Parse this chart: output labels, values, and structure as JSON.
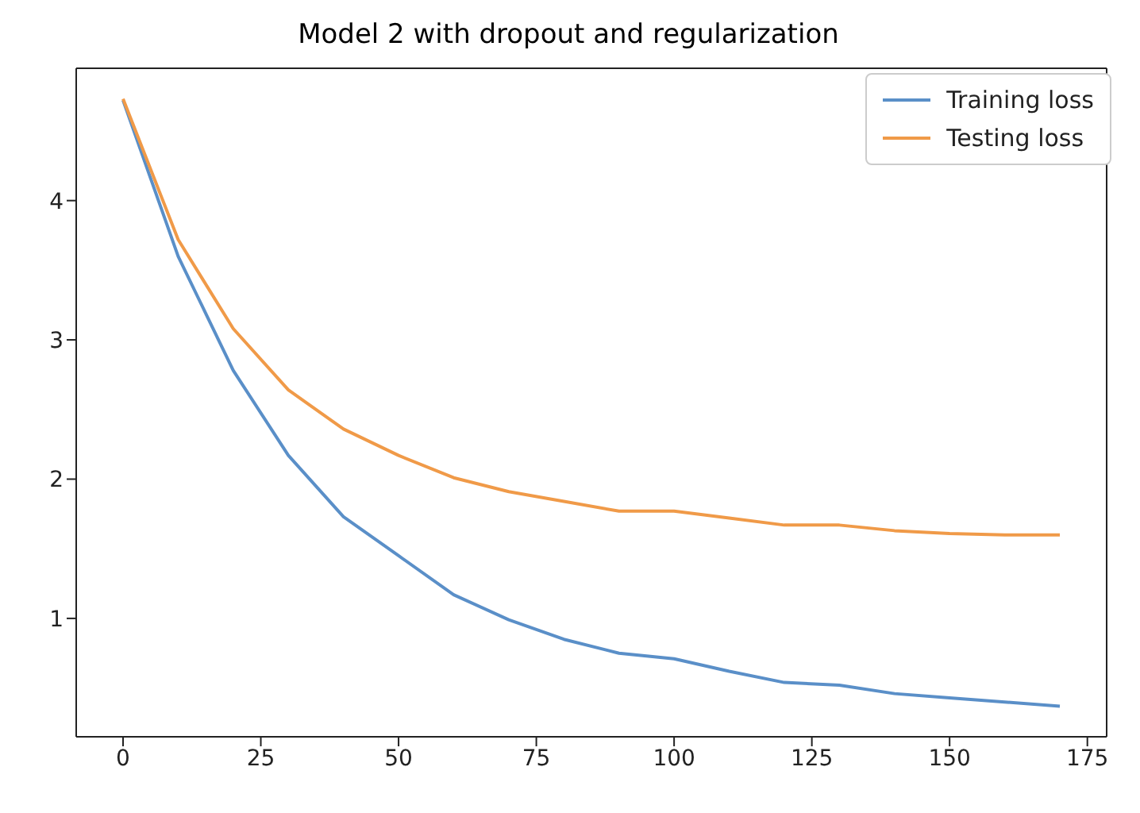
{
  "chart_data": {
    "type": "line",
    "title": "Model 2 with dropout and regularization",
    "x": [
      0,
      10,
      20,
      30,
      40,
      50,
      60,
      70,
      80,
      90,
      100,
      110,
      120,
      130,
      140,
      150,
      160,
      170
    ],
    "series": [
      {
        "name": "Training loss",
        "color": "#5a8fc8",
        "values": [
          4.72,
          3.6,
          2.78,
          2.17,
          1.73,
          1.45,
          1.17,
          0.99,
          0.85,
          0.75,
          0.71,
          0.62,
          0.54,
          0.52,
          0.46,
          0.43,
          0.4,
          0.37
        ]
      },
      {
        "name": "Testing loss",
        "color": "#f09a48",
        "values": [
          4.73,
          3.72,
          3.08,
          2.64,
          2.36,
          2.17,
          2.01,
          1.91,
          1.84,
          1.77,
          1.77,
          1.72,
          1.67,
          1.67,
          1.63,
          1.61,
          1.6,
          1.6
        ]
      }
    ],
    "xlim": [
      -8.5,
      178.5
    ],
    "xticks": [
      0,
      25,
      50,
      75,
      100,
      125,
      150,
      175
    ],
    "ylim": [
      0.15,
      4.95
    ],
    "yticks": [
      1,
      2,
      3,
      4
    ],
    "legend": "top right"
  }
}
